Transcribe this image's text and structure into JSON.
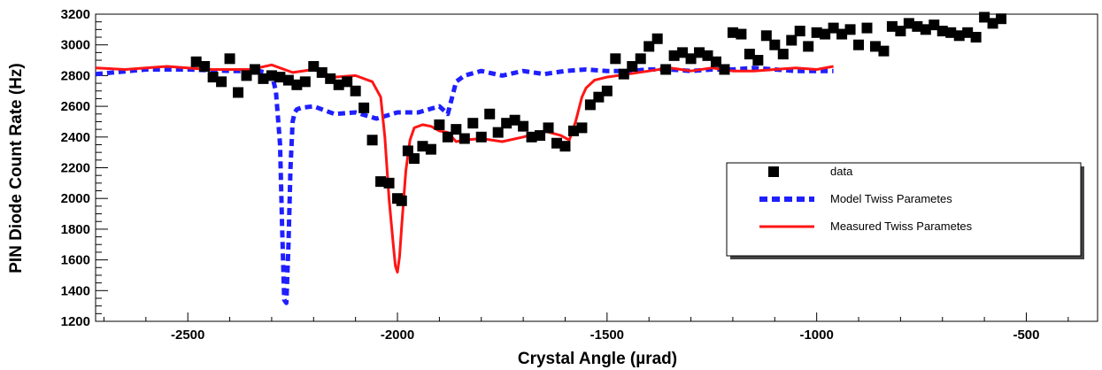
{
  "chart_data": {
    "type": "scatter",
    "title": "",
    "xlabel": "Crystal Angle (µrad)",
    "ylabel": "PIN Diode Count Rate (Hz)",
    "xlim": [
      -2720,
      -330
    ],
    "ylim": [
      1200,
      3200
    ],
    "x_ticks": [
      -2500,
      -2000,
      -1500,
      -1000,
      -500
    ],
    "y_ticks": [
      1200,
      1400,
      1600,
      1800,
      2000,
      2200,
      2400,
      2600,
      2800,
      3000,
      3200
    ],
    "grid": false,
    "legend_position": "right",
    "series": [
      {
        "name": "data",
        "style": "markers",
        "color": "#000000",
        "x": [
          -2480,
          -2460,
          -2440,
          -2420,
          -2400,
          -2380,
          -2360,
          -2340,
          -2320,
          -2300,
          -2280,
          -2260,
          -2240,
          -2220,
          -2200,
          -2180,
          -2160,
          -2140,
          -2120,
          -2100,
          -2080,
          -2060,
          -2040,
          -2020,
          -2000,
          -1990,
          -1975,
          -1960,
          -1940,
          -1920,
          -1900,
          -1880,
          -1860,
          -1840,
          -1820,
          -1800,
          -1780,
          -1760,
          -1740,
          -1720,
          -1700,
          -1680,
          -1660,
          -1640,
          -1620,
          -1600,
          -1580,
          -1560,
          -1540,
          -1520,
          -1500,
          -1480,
          -1460,
          -1440,
          -1420,
          -1400,
          -1380,
          -1360,
          -1340,
          -1320,
          -1300,
          -1280,
          -1260,
          -1240,
          -1220,
          -1200,
          -1180,
          -1160,
          -1140,
          -1120,
          -1100,
          -1080,
          -1060,
          -1040,
          -1020,
          -1000,
          -980,
          -960,
          -940,
          -920,
          -900,
          -880,
          -860,
          -840,
          -820,
          -800,
          -780,
          -760,
          -740,
          -720,
          -700,
          -680,
          -660,
          -640,
          -620,
          -600,
          -580,
          -560
        ],
        "y": [
          2890,
          2860,
          2790,
          2760,
          2910,
          2690,
          2800,
          2840,
          2780,
          2800,
          2790,
          2770,
          2740,
          2760,
          2860,
          2820,
          2780,
          2740,
          2760,
          2700,
          2590,
          2380,
          2110,
          2100,
          2000,
          1985,
          2310,
          2260,
          2340,
          2320,
          2480,
          2400,
          2450,
          2390,
          2490,
          2400,
          2550,
          2430,
          2490,
          2510,
          2470,
          2400,
          2410,
          2460,
          2360,
          2340,
          2440,
          2460,
          2610,
          2660,
          2700,
          2910,
          2810,
          2860,
          2910,
          2990,
          3040,
          2840,
          2930,
          2950,
          2910,
          2950,
          2930,
          2890,
          2840,
          3080,
          3070,
          2940,
          2900,
          3060,
          3000,
          2940,
          3030,
          3090,
          2990,
          3080,
          3070,
          3110,
          3070,
          3100,
          3000,
          3110,
          2990,
          2960,
          3120,
          3090,
          3140,
          3120,
          3100,
          3130,
          3090,
          3080,
          3060,
          3080,
          3050,
          3180,
          3140,
          3170
        ]
      },
      {
        "name": "Model Twiss Parametes",
        "style": "dashed",
        "color": "#1f1fff",
        "x": [
          -2720,
          -2600,
          -2500,
          -2400,
          -2330,
          -2300,
          -2290,
          -2280,
          -2275,
          -2270,
          -2265,
          -2260,
          -2255,
          -2250,
          -2245,
          -2240,
          -2230,
          -2200,
          -2150,
          -2100,
          -2050,
          -2000,
          -1950,
          -1900,
          -1880,
          -1860,
          -1840,
          -1800,
          -1750,
          -1700,
          -1650,
          -1600,
          -1550,
          -1500,
          -1450,
          -1400,
          -1350,
          -1300,
          -1250,
          -1200,
          -1150,
          -1100,
          -1050,
          -1000,
          -960
        ],
        "y": [
          2810,
          2840,
          2840,
          2830,
          2830,
          2810,
          2700,
          2350,
          1800,
          1340,
          1320,
          1700,
          2200,
          2500,
          2560,
          2580,
          2590,
          2600,
          2550,
          2560,
          2520,
          2560,
          2560,
          2600,
          2550,
          2760,
          2800,
          2830,
          2800,
          2830,
          2810,
          2830,
          2840,
          2830,
          2830,
          2840,
          2840,
          2830,
          2840,
          2840,
          2850,
          2840,
          2830,
          2830,
          2830
        ]
      },
      {
        "name": "Measured Twiss Parametes",
        "style": "solid",
        "color": "#ff1515",
        "x": [
          -2720,
          -2650,
          -2550,
          -2450,
          -2350,
          -2300,
          -2250,
          -2200,
          -2150,
          -2100,
          -2060,
          -2040,
          -2030,
          -2020,
          -2010,
          -2005,
          -2000,
          -1995,
          -1990,
          -1980,
          -1970,
          -1960,
          -1940,
          -1920,
          -1900,
          -1880,
          -1860,
          -1840,
          -1800,
          -1750,
          -1700,
          -1650,
          -1610,
          -1590,
          -1575,
          -1560,
          -1550,
          -1530,
          -1500,
          -1450,
          -1400,
          -1350,
          -1300,
          -1250,
          -1200,
          -1150,
          -1100,
          -1050,
          -1000,
          -960
        ],
        "y": [
          2850,
          2840,
          2860,
          2840,
          2840,
          2870,
          2820,
          2840,
          2790,
          2800,
          2760,
          2660,
          2400,
          2000,
          1700,
          1560,
          1520,
          1620,
          1820,
          2180,
          2380,
          2460,
          2480,
          2470,
          2440,
          2430,
          2370,
          2380,
          2390,
          2370,
          2400,
          2440,
          2410,
          2380,
          2500,
          2660,
          2720,
          2770,
          2790,
          2810,
          2830,
          2850,
          2830,
          2850,
          2830,
          2830,
          2840,
          2850,
          2840,
          2860
        ]
      }
    ]
  }
}
